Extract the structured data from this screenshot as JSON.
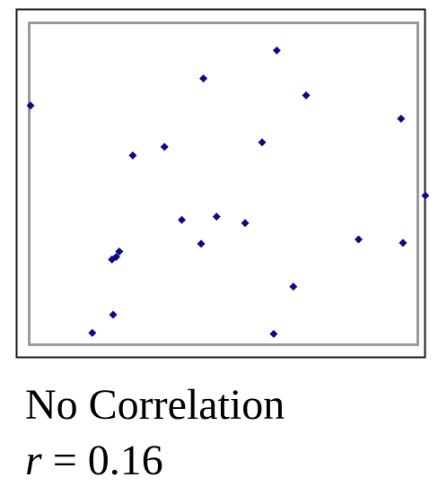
{
  "chart_data": {
    "type": "scatter",
    "title": "No Correlation",
    "statistic": {
      "symbol": "r",
      "operator": "=",
      "value": "0.16"
    },
    "xlabel": "",
    "ylabel": "",
    "xlim": [
      0,
      100
    ],
    "ylim": [
      0,
      100
    ],
    "grid": false,
    "marker_color": "#0a0a8a",
    "frame_outer_color": "#1a1a1a",
    "frame_inner_color": "#9a9a9a",
    "series": [
      {
        "points": [
          [
            0.0,
            74.5
          ],
          [
            16.0,
            3.3
          ],
          [
            21.1,
            26.3
          ],
          [
            21.4,
            9.0
          ],
          [
            22.2,
            27.1
          ],
          [
            23.0,
            28.8
          ],
          [
            26.5,
            58.9
          ],
          [
            34.7,
            61.6
          ],
          [
            39.2,
            38.7
          ],
          [
            44.2,
            31.2
          ],
          [
            44.8,
            83.0
          ],
          [
            48.2,
            39.7
          ],
          [
            55.6,
            37.7
          ],
          [
            60.0,
            63.0
          ],
          [
            63.0,
            3.0
          ],
          [
            63.8,
            91.8
          ],
          [
            68.1,
            17.8
          ],
          [
            71.4,
            77.7
          ],
          [
            85.0,
            32.6
          ],
          [
            96.0,
            70.4
          ],
          [
            96.5,
            31.5
          ],
          [
            102.3,
            46.3
          ]
        ]
      }
    ]
  }
}
